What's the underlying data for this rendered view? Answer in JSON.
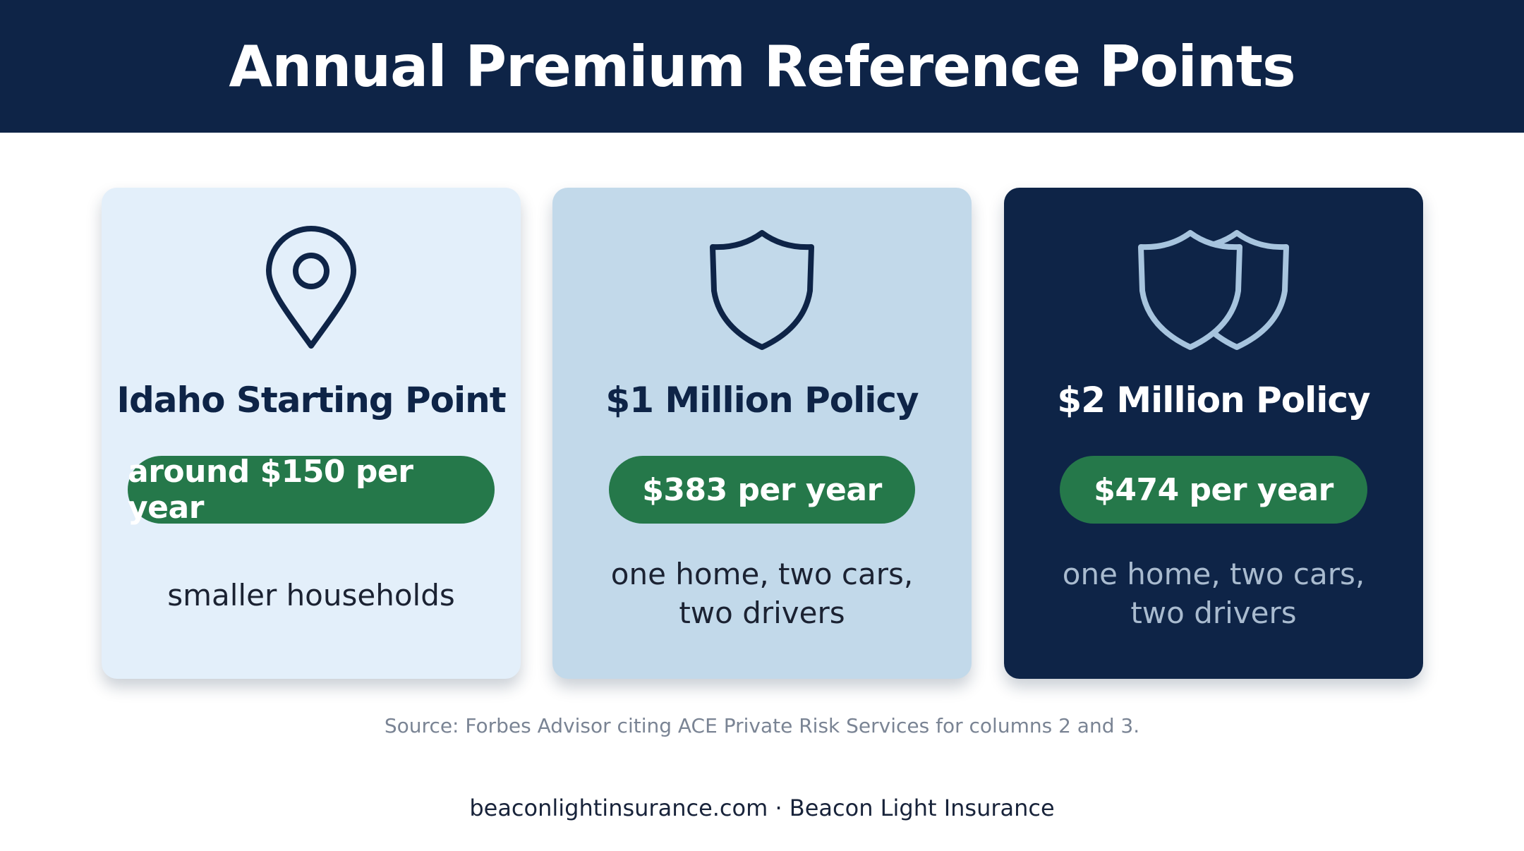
{
  "header": {
    "title": "Annual Premium Reference Points"
  },
  "cards": [
    {
      "icon": "location-pin-icon",
      "title": "Idaho Starting Point",
      "price": "around $150 per year",
      "desc_lines": [
        "smaller households"
      ]
    },
    {
      "icon": "shield-icon",
      "title": "$1 Million Policy",
      "price": "$383 per year",
      "desc_lines": [
        "one home, two cars,",
        "two drivers"
      ]
    },
    {
      "icon": "double-shield-icon",
      "title": "$2 Million Policy",
      "price": "$474 per year",
      "desc_lines": [
        "one home, two cars,",
        "two drivers"
      ]
    }
  ],
  "source": "Source: Forbes Advisor citing ACE Private Risk Services for columns 2 and 3.",
  "footer": "beaconlightinsurance.com · Beacon Light Insurance",
  "colors": {
    "navy": "#0e2447",
    "card_light": "#e3effa",
    "card_mid": "#c2d9ea",
    "pill_green": "#25784a",
    "icon_light": "#a7c4de"
  }
}
